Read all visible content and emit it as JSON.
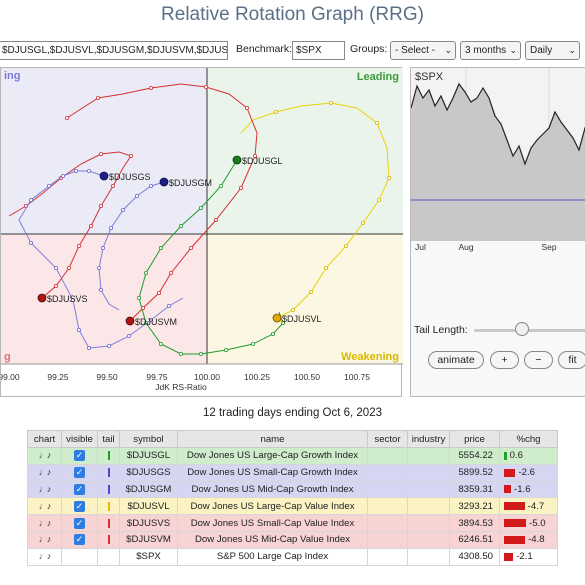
{
  "title": "Relative Rotation Graph (RRG)",
  "controls": {
    "symbols_value": "$DJUSGL,$DJUSVL,$DJUSGM,$DJUSVM,$DJUSGS",
    "benchmark_label": "Benchmark:",
    "benchmark_value": "$SPX",
    "groups_label": "Groups:",
    "groups_value": "- Select -",
    "period_value": "3 months",
    "frequency_value": "Daily"
  },
  "rrg": {
    "quadrants": {
      "improving": "Improving",
      "leading": "Leading",
      "lagging": "Lagging",
      "weakening": "Weakening"
    },
    "x_axis_label": "JdK RS-Ratio",
    "x_ticks": [
      "99.00",
      "99.25",
      "99.50",
      "99.75",
      "100.00",
      "100.25",
      "100.50",
      "100.75"
    ],
    "colors": {
      "improving": "#ebebf8",
      "leading": "#eaf4ea",
      "lagging": "#fbe7e7",
      "weakening": "#fbf7e2"
    },
    "series": [
      {
        "symbol": "$DJUSGL",
        "color": "#1f9b2c",
        "dot_color": "#1b7a1e"
      },
      {
        "symbol": "$DJUSGS",
        "color": "#7c7ddf",
        "dot_color": "#1f1f8a"
      },
      {
        "symbol": "$DJUSGM",
        "color": "#7c7ddf",
        "dot_color": "#1f1f8a"
      },
      {
        "symbol": "$DJUSVL",
        "color": "#e8d40a",
        "dot_color": "#e0a800"
      },
      {
        "symbol": "$DJUSVS",
        "color": "#d63030",
        "dot_color": "#b01515"
      },
      {
        "symbol": "$DJUSVM",
        "color": "#d63030",
        "dot_color": "#b01515"
      }
    ]
  },
  "spx_chart": {
    "title": "$SPX",
    "x_ticks": [
      "Jul",
      "Aug",
      "Sep"
    ]
  },
  "tail": {
    "label": "Tail Length:",
    "buttons": {
      "animate": "animate",
      "plus": "+",
      "minus": "−",
      "fit": "fit"
    }
  },
  "caption": "12 trading days ending Oct 6, 2023",
  "table": {
    "headers": [
      "chart",
      "visible",
      "tail",
      "symbol",
      "name",
      "sector",
      "industry",
      "price",
      "%chg"
    ],
    "rows": [
      {
        "symbol": "$DJUSGL",
        "name": "Dow Jones US Large-Cap Growth Index",
        "sector": "",
        "industry": "",
        "price": "5554.22",
        "chg": "0.6",
        "chg_value": 0.6,
        "row_color": "#cfeccc",
        "tail_color": "#1f9b2c",
        "visible": true
      },
      {
        "symbol": "$DJUSGS",
        "name": "Dow Jones US Small-Cap Growth Index",
        "sector": "",
        "industry": "",
        "price": "5899.52",
        "chg": "-2.6",
        "chg_value": -2.6,
        "row_color": "#d6d6f2",
        "tail_color": "#4a4ad0",
        "visible": true
      },
      {
        "symbol": "$DJUSGM",
        "name": "Dow Jones US Mid-Cap Growth Index",
        "sector": "",
        "industry": "",
        "price": "8359.31",
        "chg": "-1.6",
        "chg_value": -1.6,
        "row_color": "#d6d6f2",
        "tail_color": "#4a4ad0",
        "visible": true
      },
      {
        "symbol": "$DJUSVL",
        "name": "Dow Jones US Large-Cap Value Index",
        "sector": "",
        "industry": "",
        "price": "3293.21",
        "chg": "-4.7",
        "chg_value": -4.7,
        "row_color": "#fbf3c4",
        "tail_color": "#e8b800",
        "visible": true
      },
      {
        "symbol": "$DJUSVS",
        "name": "Dow Jones US Small-Cap Value Index",
        "sector": "",
        "industry": "",
        "price": "3894.53",
        "chg": "-5.0",
        "chg_value": -5.0,
        "row_color": "#f7d3d3",
        "tail_color": "#d63030",
        "visible": true
      },
      {
        "symbol": "$DJUSVM",
        "name": "Dow Jones US Mid-Cap Value Index",
        "sector": "",
        "industry": "",
        "price": "6246.51",
        "chg": "-4.8",
        "chg_value": -4.8,
        "row_color": "#f7d3d3",
        "tail_color": "#d63030",
        "visible": true
      },
      {
        "symbol": "$SPX",
        "name": "S&P 500 Large Cap Index",
        "sector": "",
        "industry": "",
        "price": "4308.50",
        "chg": "-2.1",
        "chg_value": -2.1,
        "row_color": "#ffffff",
        "tail_color": "",
        "visible": false
      }
    ]
  }
}
